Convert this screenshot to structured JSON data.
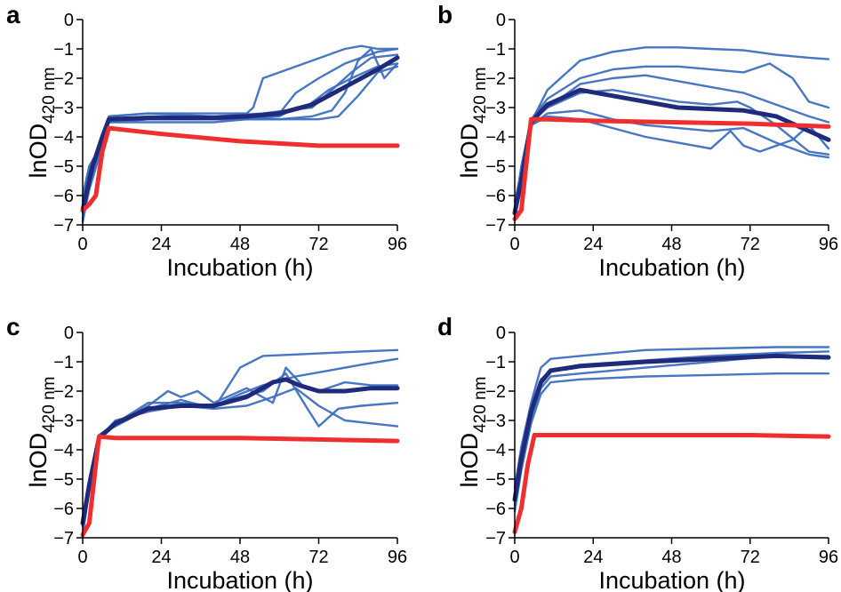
{
  "panels": [
    {
      "letter": "a",
      "ylabel_main": "lnOD",
      "ylabel_sub": "420 nm",
      "xlabel": "Incubation (h)"
    },
    {
      "letter": "b",
      "ylabel_main": "lnOD",
      "ylabel_sub": "420 nm",
      "xlabel": "Incubation (h)"
    },
    {
      "letter": "c",
      "ylabel_main": "lnOD",
      "ylabel_sub": "420 nm",
      "xlabel": "Incubation (h)"
    },
    {
      "letter": "d",
      "ylabel_main": "lnOD",
      "ylabel_sub": "420 nm",
      "xlabel": "Incubation (h)"
    }
  ],
  "colors": {
    "replicate": "#3d6fc0",
    "mean": "#1f2a7a",
    "control": "#ef2f2f",
    "axis": "#000000"
  },
  "chart_data": [
    {
      "type": "line",
      "panel": "a",
      "xlabel": "Incubation (h)",
      "ylabel": "lnOD420 nm",
      "xlim": [
        0,
        96
      ],
      "ylim": [
        -7,
        0
      ],
      "xticks": [
        0,
        24,
        48,
        72,
        96
      ],
      "yticks": [
        0,
        -1,
        -2,
        -3,
        -4,
        -5,
        -6,
        -7
      ],
      "series": [
        {
          "role": "replicate",
          "x": [
            0,
            2,
            5,
            8,
            20,
            40,
            50,
            52,
            55,
            70,
            80,
            85,
            90,
            96
          ],
          "y": [
            -6.2,
            -5,
            -4.5,
            -3.3,
            -3.2,
            -3.2,
            -3.2,
            -3,
            -2,
            -1.4,
            -1,
            -0.9,
            -1,
            -1
          ]
        },
        {
          "role": "replicate",
          "x": [
            0,
            2,
            5,
            8,
            20,
            40,
            55,
            60,
            65,
            72,
            80,
            90,
            96
          ],
          "y": [
            -6.8,
            -5.5,
            -4.6,
            -3.4,
            -3.3,
            -3.3,
            -3.3,
            -3.2,
            -2.5,
            -2,
            -1.5,
            -1.1,
            -1
          ]
        },
        {
          "role": "replicate",
          "x": [
            0,
            2,
            5,
            8,
            20,
            40,
            55,
            62,
            70,
            75,
            82,
            88,
            96
          ],
          "y": [
            -6.5,
            -5.2,
            -4.3,
            -3.3,
            -3.2,
            -3.3,
            -3.2,
            -3.1,
            -3,
            -2.5,
            -1.8,
            -1.3,
            -1.2
          ]
        },
        {
          "role": "replicate",
          "x": [
            0,
            2,
            5,
            8,
            20,
            40,
            60,
            70,
            76,
            80,
            84,
            88,
            92,
            96
          ],
          "y": [
            -6,
            -5,
            -4.4,
            -3.5,
            -3.4,
            -3.4,
            -3.4,
            -3.3,
            -3.1,
            -2.5,
            -1.4,
            -1,
            -2,
            -1.5
          ]
        },
        {
          "role": "replicate",
          "x": [
            0,
            2,
            5,
            8,
            20,
            40,
            60,
            72,
            78,
            84,
            90,
            96
          ],
          "y": [
            -6.9,
            -5.8,
            -4.7,
            -3.5,
            -3.4,
            -3.4,
            -3.4,
            -3.4,
            -3.3,
            -2.6,
            -1.8,
            -1.6
          ]
        },
        {
          "role": "replicate",
          "x": [
            0,
            2,
            5,
            8,
            20,
            40,
            60,
            65,
            68,
            75,
            82,
            90,
            96
          ],
          "y": [
            -6.6,
            -5.3,
            -4.4,
            -3.5,
            -3.5,
            -3.5,
            -3.3,
            -3,
            -3,
            -2.4,
            -2,
            -1.6,
            -1.5
          ]
        },
        {
          "role": "mean",
          "x": [
            0,
            3,
            6,
            8,
            20,
            40,
            50,
            60,
            70,
            80,
            90,
            96
          ],
          "y": [
            -6.5,
            -5,
            -4,
            -3.4,
            -3.35,
            -3.35,
            -3.3,
            -3.2,
            -2.9,
            -2.3,
            -1.7,
            -1.3
          ]
        },
        {
          "role": "control",
          "x": [
            0,
            2,
            4,
            6,
            8,
            24,
            48,
            72,
            96
          ],
          "y": [
            -6.5,
            -6.3,
            -6,
            -4.5,
            -3.7,
            -3.9,
            -4.15,
            -4.3,
            -4.3
          ]
        }
      ]
    },
    {
      "type": "line",
      "panel": "b",
      "xlabel": "Incubation (h)",
      "ylabel": "lnOD420 nm",
      "xlim": [
        0,
        96
      ],
      "ylim": [
        -7,
        0
      ],
      "xticks": [
        0,
        24,
        48,
        72,
        96
      ],
      "yticks": [
        0,
        -1,
        -2,
        -3,
        -4,
        -5,
        -6,
        -7
      ],
      "series": [
        {
          "role": "replicate",
          "x": [
            0,
            2,
            5,
            10,
            20,
            30,
            40,
            50,
            60,
            70,
            80,
            90,
            96
          ],
          "y": [
            -6.8,
            -5.5,
            -3.5,
            -2.4,
            -1.4,
            -1.1,
            -0.95,
            -0.95,
            -1,
            -1.05,
            -1.2,
            -1.3,
            -1.35
          ]
        },
        {
          "role": "replicate",
          "x": [
            0,
            2,
            5,
            10,
            20,
            30,
            40,
            50,
            60,
            70,
            78,
            85,
            90,
            96
          ],
          "y": [
            -6.5,
            -5,
            -3.4,
            -2.7,
            -2,
            -1.7,
            -1.6,
            -1.6,
            -1.7,
            -1.8,
            -1.5,
            -2,
            -2.8,
            -3
          ]
        },
        {
          "role": "replicate",
          "x": [
            0,
            2,
            5,
            10,
            20,
            30,
            40,
            50,
            60,
            70,
            80,
            90,
            96
          ],
          "y": [
            -6.2,
            -5.2,
            -3.4,
            -3,
            -2.2,
            -2,
            -1.9,
            -2.1,
            -2.3,
            -2.5,
            -2.9,
            -3.3,
            -3.5
          ]
        },
        {
          "role": "replicate",
          "x": [
            0,
            2,
            5,
            10,
            20,
            30,
            40,
            50,
            60,
            68,
            72,
            80,
            90,
            96
          ],
          "y": [
            -6.6,
            -5.4,
            -3.5,
            -3,
            -2.5,
            -2.4,
            -2.6,
            -2.8,
            -2.9,
            -2.8,
            -3,
            -3.6,
            -4.5,
            -4.6
          ]
        },
        {
          "role": "replicate",
          "x": [
            0,
            2,
            5,
            10,
            20,
            30,
            40,
            50,
            60,
            70,
            80,
            90,
            96
          ],
          "y": [
            -6.4,
            -5.6,
            -3.6,
            -3.2,
            -3.1,
            -3.4,
            -3.6,
            -3.7,
            -3.8,
            -3.7,
            -4.2,
            -4.6,
            -4.7
          ]
        },
        {
          "role": "replicate",
          "x": [
            0,
            2,
            5,
            10,
            20,
            30,
            40,
            50,
            60,
            66,
            70,
            75,
            85,
            90,
            96
          ],
          "y": [
            -6.6,
            -5.5,
            -3.6,
            -3.3,
            -3.4,
            -3.7,
            -4,
            -4.2,
            -4.4,
            -3.8,
            -4.3,
            -4.5,
            -4.1,
            -3.6,
            -4.4
          ]
        },
        {
          "role": "mean",
          "x": [
            0,
            2,
            5,
            10,
            20,
            30,
            40,
            50,
            60,
            70,
            80,
            90,
            96
          ],
          "y": [
            -6.6,
            -5.5,
            -3.5,
            -2.9,
            -2.4,
            -2.6,
            -2.8,
            -3,
            -3.05,
            -3.1,
            -3.3,
            -3.8,
            -4.1
          ]
        },
        {
          "role": "control",
          "x": [
            0,
            2,
            3,
            5,
            10,
            24,
            48,
            72,
            96
          ],
          "y": [
            -6.8,
            -6.5,
            -5.5,
            -3.4,
            -3.4,
            -3.45,
            -3.5,
            -3.55,
            -3.65
          ]
        }
      ]
    },
    {
      "type": "line",
      "panel": "c",
      "xlabel": "Incubation (h)",
      "ylabel": "lnOD420 nm",
      "xlim": [
        0,
        96
      ],
      "ylim": [
        -7,
        0
      ],
      "xticks": [
        0,
        24,
        48,
        72,
        96
      ],
      "yticks": [
        0,
        -1,
        -2,
        -3,
        -4,
        -5,
        -6,
        -7
      ],
      "series": [
        {
          "role": "replicate",
          "x": [
            0,
            2,
            5,
            10,
            20,
            30,
            40,
            48,
            55,
            65,
            75,
            85,
            96
          ],
          "y": [
            -6.5,
            -5,
            -3.5,
            -3.2,
            -2.6,
            -2.3,
            -2.6,
            -1.2,
            -0.8,
            -0.75,
            -0.7,
            -0.65,
            -0.6
          ]
        },
        {
          "role": "replicate",
          "x": [
            0,
            2,
            5,
            10,
            20,
            30,
            40,
            48,
            55,
            65,
            75,
            85,
            96
          ],
          "y": [
            -6.6,
            -5.2,
            -3.6,
            -3.1,
            -2.4,
            -2.4,
            -2.5,
            -2.1,
            -1.8,
            -1.5,
            -1.3,
            -1.1,
            -0.9
          ]
        },
        {
          "role": "replicate",
          "x": [
            0,
            2,
            5,
            10,
            20,
            26,
            30,
            35,
            40,
            50,
            58,
            62,
            67,
            72,
            80,
            88,
            96
          ],
          "y": [
            -6.4,
            -5.1,
            -3.5,
            -3.1,
            -2.5,
            -2,
            -2.2,
            -2,
            -2.4,
            -1.9,
            -2.4,
            -1.2,
            -1.8,
            -2,
            -1.7,
            -1.8,
            -1.8
          ]
        },
        {
          "role": "replicate",
          "x": [
            0,
            2,
            5,
            10,
            20,
            30,
            40,
            48,
            55,
            62,
            68,
            72,
            78,
            85,
            96
          ],
          "y": [
            -6.9,
            -5.4,
            -3.6,
            -3,
            -2.7,
            -2.5,
            -2.5,
            -2.2,
            -2,
            -1.4,
            -2.5,
            -3.2,
            -2.6,
            -2.5,
            -2.4
          ]
        },
        {
          "role": "replicate",
          "x": [
            0,
            2,
            5,
            10,
            20,
            30,
            40,
            50,
            58,
            65,
            72,
            80,
            88,
            96
          ],
          "y": [
            -6.6,
            -5.3,
            -3.5,
            -3.1,
            -2.6,
            -2.5,
            -2.6,
            -2.5,
            -2.2,
            -1.9,
            -2.5,
            -3,
            -3.1,
            -3.2
          ]
        },
        {
          "role": "mean",
          "x": [
            0,
            2,
            5,
            10,
            20,
            30,
            40,
            50,
            58,
            62,
            66,
            72,
            80,
            88,
            96
          ],
          "y": [
            -6.5,
            -5.2,
            -3.6,
            -3.1,
            -2.6,
            -2.5,
            -2.5,
            -2.2,
            -1.7,
            -1.6,
            -1.8,
            -2,
            -2,
            -1.9,
            -1.9
          ]
        },
        {
          "role": "control",
          "x": [
            0,
            2,
            4,
            5,
            10,
            24,
            48,
            72,
            96
          ],
          "y": [
            -6.9,
            -6.5,
            -4.5,
            -3.55,
            -3.6,
            -3.6,
            -3.6,
            -3.65,
            -3.7
          ]
        }
      ]
    },
    {
      "type": "line",
      "panel": "d",
      "xlabel": "Incubation (h)",
      "ylabel": "lnOD420 nm",
      "xlim": [
        0,
        96
      ],
      "ylim": [
        -7,
        0
      ],
      "xticks": [
        0,
        24,
        48,
        72,
        96
      ],
      "yticks": [
        0,
        -1,
        -2,
        -3,
        -4,
        -5,
        -6,
        -7
      ],
      "series": [
        {
          "role": "replicate",
          "x": [
            0,
            2,
            5,
            8,
            11,
            20,
            40,
            60,
            80,
            96
          ],
          "y": [
            -5.3,
            -3.9,
            -2.4,
            -1.2,
            -0.9,
            -0.8,
            -0.6,
            -0.55,
            -0.5,
            -0.5
          ]
        },
        {
          "role": "replicate",
          "x": [
            0,
            2,
            5,
            8,
            11,
            20,
            40,
            60,
            80,
            96
          ],
          "y": [
            -5.6,
            -4.2,
            -2.7,
            -1.6,
            -1.3,
            -1.1,
            -0.95,
            -0.8,
            -0.7,
            -0.65
          ]
        },
        {
          "role": "replicate",
          "x": [
            0,
            2,
            5,
            8,
            11,
            20,
            40,
            60,
            80,
            96
          ],
          "y": [
            -5.9,
            -4.5,
            -2.9,
            -1.9,
            -1.5,
            -1.4,
            -1.2,
            -1,
            -0.8,
            -0.8
          ]
        },
        {
          "role": "replicate",
          "x": [
            0,
            2,
            5,
            8,
            11,
            20,
            40,
            60,
            80,
            96
          ],
          "y": [
            -6.1,
            -4.7,
            -3.1,
            -2.1,
            -1.7,
            -1.6,
            -1.5,
            -1.45,
            -1.4,
            -1.4
          ]
        },
        {
          "role": "mean",
          "x": [
            0,
            2,
            5,
            8,
            11,
            20,
            40,
            60,
            80,
            96
          ],
          "y": [
            -5.7,
            -4.3,
            -2.7,
            -1.7,
            -1.3,
            -1.15,
            -1,
            -0.9,
            -0.8,
            -0.85
          ]
        },
        {
          "role": "control",
          "x": [
            0,
            2,
            4,
            6,
            10,
            24,
            48,
            72,
            96
          ],
          "y": [
            -6.8,
            -6,
            -4.5,
            -3.5,
            -3.5,
            -3.5,
            -3.5,
            -3.5,
            -3.55
          ]
        }
      ]
    }
  ]
}
